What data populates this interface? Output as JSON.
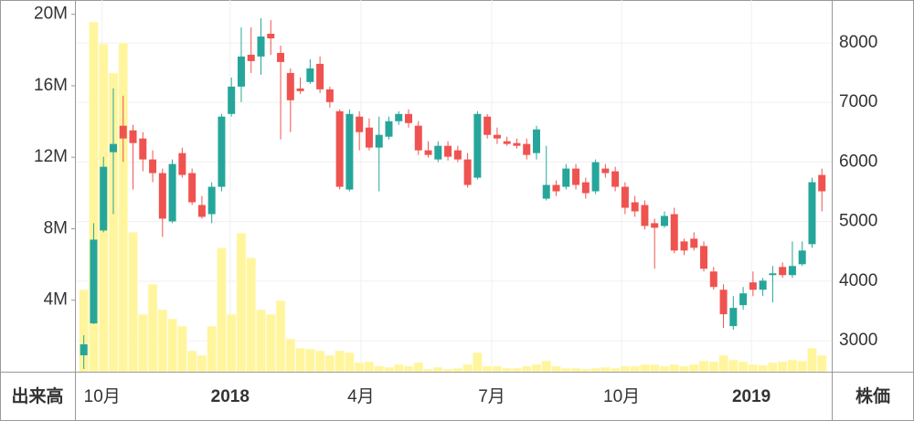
{
  "chart_data": {
    "type": "candlestick",
    "y_label": "出来高",
    "y2_label": "株価",
    "categories": [
      null,
      null,
      null,
      null,
      null,
      null,
      null,
      null,
      null,
      null,
      null,
      null,
      null,
      null,
      null,
      null,
      null,
      null,
      null,
      null,
      null,
      null,
      null,
      null,
      null,
      null,
      null,
      null,
      null,
      null,
      null,
      null,
      null,
      null,
      null,
      null,
      null,
      null,
      null,
      null,
      null,
      null,
      null,
      null,
      null,
      null,
      null,
      null,
      null,
      null,
      null,
      null,
      null,
      null,
      null,
      null,
      null,
      null,
      null,
      null,
      null,
      null,
      null,
      null,
      null,
      null,
      null,
      null,
      null,
      null,
      null,
      null,
      null,
      null,
      null,
      null
    ],
    "open": [
      2755,
      3291,
      4850,
      6165,
      6609,
      6532,
      6395,
      6043,
      5814,
      5003,
      6150,
      5814,
      5278,
      5125,
      5584,
      6807,
      7266,
      7801,
      7771,
      8153,
      7832,
      7495,
      7235,
      7343,
      7648,
      7220,
      6853,
      5538,
      6762,
      6578,
      6242,
      6425,
      6685,
      6807,
      6609,
      6196,
      6043,
      6272,
      6196,
      6043,
      5737,
      6762,
      6456,
      6349,
      6318,
      6303,
      6150,
      5385,
      5615,
      5584,
      5890,
      5660,
      5508,
      5890,
      5844,
      5584,
      5324,
      5278,
      4973,
      4927,
      5125,
      4667,
      4713,
      4590,
      4162,
      3856,
      3245,
      3597,
      3979,
      3856,
      4101,
      4238,
      4101,
      4284,
      4621,
      5783
    ],
    "high": [
      3092,
      4973,
      6089,
      7236,
      7113,
      6624,
      6502,
      6196,
      5890,
      6043,
      6242,
      5890,
      5431,
      5660,
      6807,
      7419,
      8260,
      8260,
      8413,
      8382,
      7954,
      7572,
      7419,
      7725,
      7771,
      7266,
      6884,
      6884,
      6853,
      6731,
      6762,
      6762,
      6853,
      6884,
      6685,
      6349,
      6349,
      6349,
      6272,
      6150,
      6853,
      6807,
      6578,
      6425,
      6395,
      6395,
      6609,
      6272,
      5691,
      5966,
      5966,
      5737,
      6043,
      5966,
      5920,
      5660,
      5431,
      5355,
      5049,
      5171,
      5232,
      4713,
      4820,
      4667,
      4239,
      3948,
      3749,
      3902,
      4162,
      4055,
      4254,
      4315,
      4667,
      4667,
      5737,
      5890
    ],
    "low": [
      2526,
      3280,
      4820,
      5125,
      6000,
      5538,
      5844,
      5660,
      4743,
      4973,
      5737,
      5278,
      5049,
      4973,
      5508,
      6762,
      7006,
      7495,
      7465,
      7801,
      6379,
      6502,
      7144,
      7312,
      7159,
      6914,
      5538,
      5508,
      6196,
      6196,
      5508,
      6379,
      6624,
      6578,
      6119,
      6073,
      6000,
      6027,
      6000,
      5569,
      5707,
      6395,
      6303,
      6272,
      6226,
      6043,
      6043,
      5355,
      5431,
      5538,
      5538,
      5385,
      5462,
      5737,
      5508,
      5125,
      5080,
      4866,
      4208,
      4896,
      4468,
      4437,
      4514,
      4162,
      3856,
      3214,
      3184,
      3520,
      3749,
      3749,
      3642,
      4055,
      4055,
      4254,
      4560,
      5171
    ],
    "close": [
      2939,
      4697,
      5920,
      6303,
      6395,
      6318,
      6043,
      5814,
      5049,
      5966,
      5783,
      5324,
      5080,
      5584,
      6762,
      7266,
      7771,
      7694,
      8107,
      8076,
      7679,
      7037,
      7190,
      7572,
      7220,
      7006,
      5584,
      6807,
      6502,
      6242,
      6456,
      6685,
      6807,
      6654,
      6196,
      6119,
      6272,
      6089,
      6043,
      5615,
      6807,
      6456,
      6395,
      6303,
      6272,
      6119,
      6547,
      5615,
      5508,
      5890,
      5615,
      5477,
      5997,
      5814,
      5584,
      5232,
      5171,
      4927,
      4896,
      5095,
      4514,
      4514,
      4560,
      4208,
      3902,
      3444,
      3551,
      3795,
      3856,
      4009,
      4132,
      4101,
      4254,
      4514,
      5661,
      5508
    ],
    "volume": [
      4590000,
      19570000,
      18340000,
      16710000,
      18390000,
      7800000,
      3210000,
      4890000,
      3470000,
      2960000,
      2550000,
      1170000,
      920000,
      2550000,
      6930000,
      3210000,
      7750000,
      6370000,
      3470000,
      3210000,
      3970000,
      1830000,
      1320000,
      1270000,
      1170000,
      920000,
      1170000,
      1070000,
      510000,
      560000,
      310000,
      250000,
      410000,
      310000,
      510000,
      150000,
      250000,
      150000,
      200000,
      410000,
      1070000,
      310000,
      310000,
      200000,
      200000,
      310000,
      410000,
      610000,
      310000,
      200000,
      200000,
      150000,
      200000,
      250000,
      200000,
      310000,
      310000,
      410000,
      410000,
      310000,
      410000,
      310000,
      410000,
      610000,
      560000,
      920000,
      660000,
      560000,
      410000,
      360000,
      510000,
      560000,
      660000,
      610000,
      1320000,
      920000
    ],
    "up_color": "#26a69a",
    "down_color": "#ef5350",
    "volume_color": "#fff59d",
    "xlim": [
      -0.9,
      76
    ],
    "xticks": [
      {
        "value": 1.86,
        "label": "10月"
      },
      {
        "value": 14.87,
        "label": "2018"
      },
      {
        "value": 28.16,
        "label": "4月"
      },
      {
        "value": 41.45,
        "label": "7月"
      },
      {
        "value": 54.65,
        "label": "10月"
      },
      {
        "value": 67.84,
        "label": "2019"
      }
    ],
    "ylim": [
      0,
      20800000
    ],
    "yticks": [
      {
        "value": 4000000,
        "label": "4M"
      },
      {
        "value": 8000000,
        "label": "8M"
      },
      {
        "value": 12000000,
        "label": "12M"
      },
      {
        "value": 16000000,
        "label": "16M"
      },
      {
        "value": 20000000,
        "label": "20M"
      }
    ],
    "y2lim": [
      2480,
      8720
    ],
    "y2ticks": [
      3000,
      4000,
      5000,
      6000,
      7000,
      8000
    ],
    "grid": true
  }
}
